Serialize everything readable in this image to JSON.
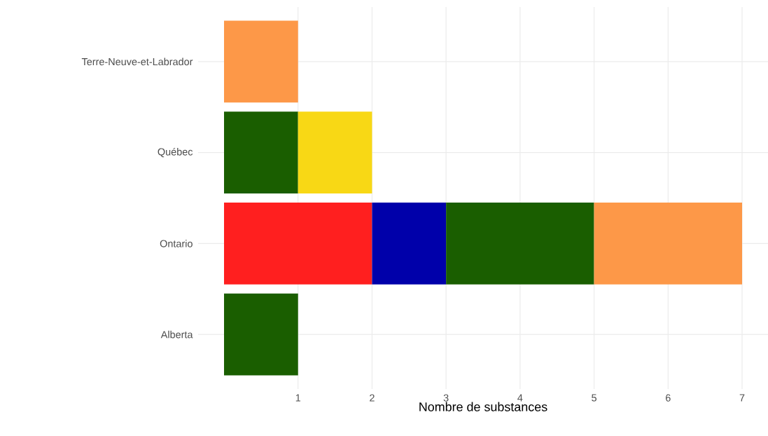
{
  "chart_data": {
    "type": "bar",
    "orientation": "horizontal",
    "stacked": true,
    "xlabel": "Nombre de substances",
    "categories": [
      "Terre-Neuve-et-Labrador",
      "Québec",
      "Ontario",
      "Alberta"
    ],
    "series": [
      {
        "color": "#ff1f1f",
        "values": [
          null,
          null,
          2,
          null
        ]
      },
      {
        "color": "#0000aa",
        "values": [
          null,
          null,
          1,
          null
        ]
      },
      {
        "color": "#1a5e00",
        "values": [
          null,
          1,
          2,
          1
        ]
      },
      {
        "color": "#f8d815",
        "values": [
          null,
          1,
          null,
          null
        ]
      },
      {
        "color": "#fd9848",
        "values": [
          1,
          null,
          2,
          null
        ]
      }
    ],
    "xlim": [
      -0.35,
      7.35
    ],
    "xticks": [
      1,
      2,
      3,
      4,
      5,
      6,
      7
    ],
    "grid": true
  }
}
